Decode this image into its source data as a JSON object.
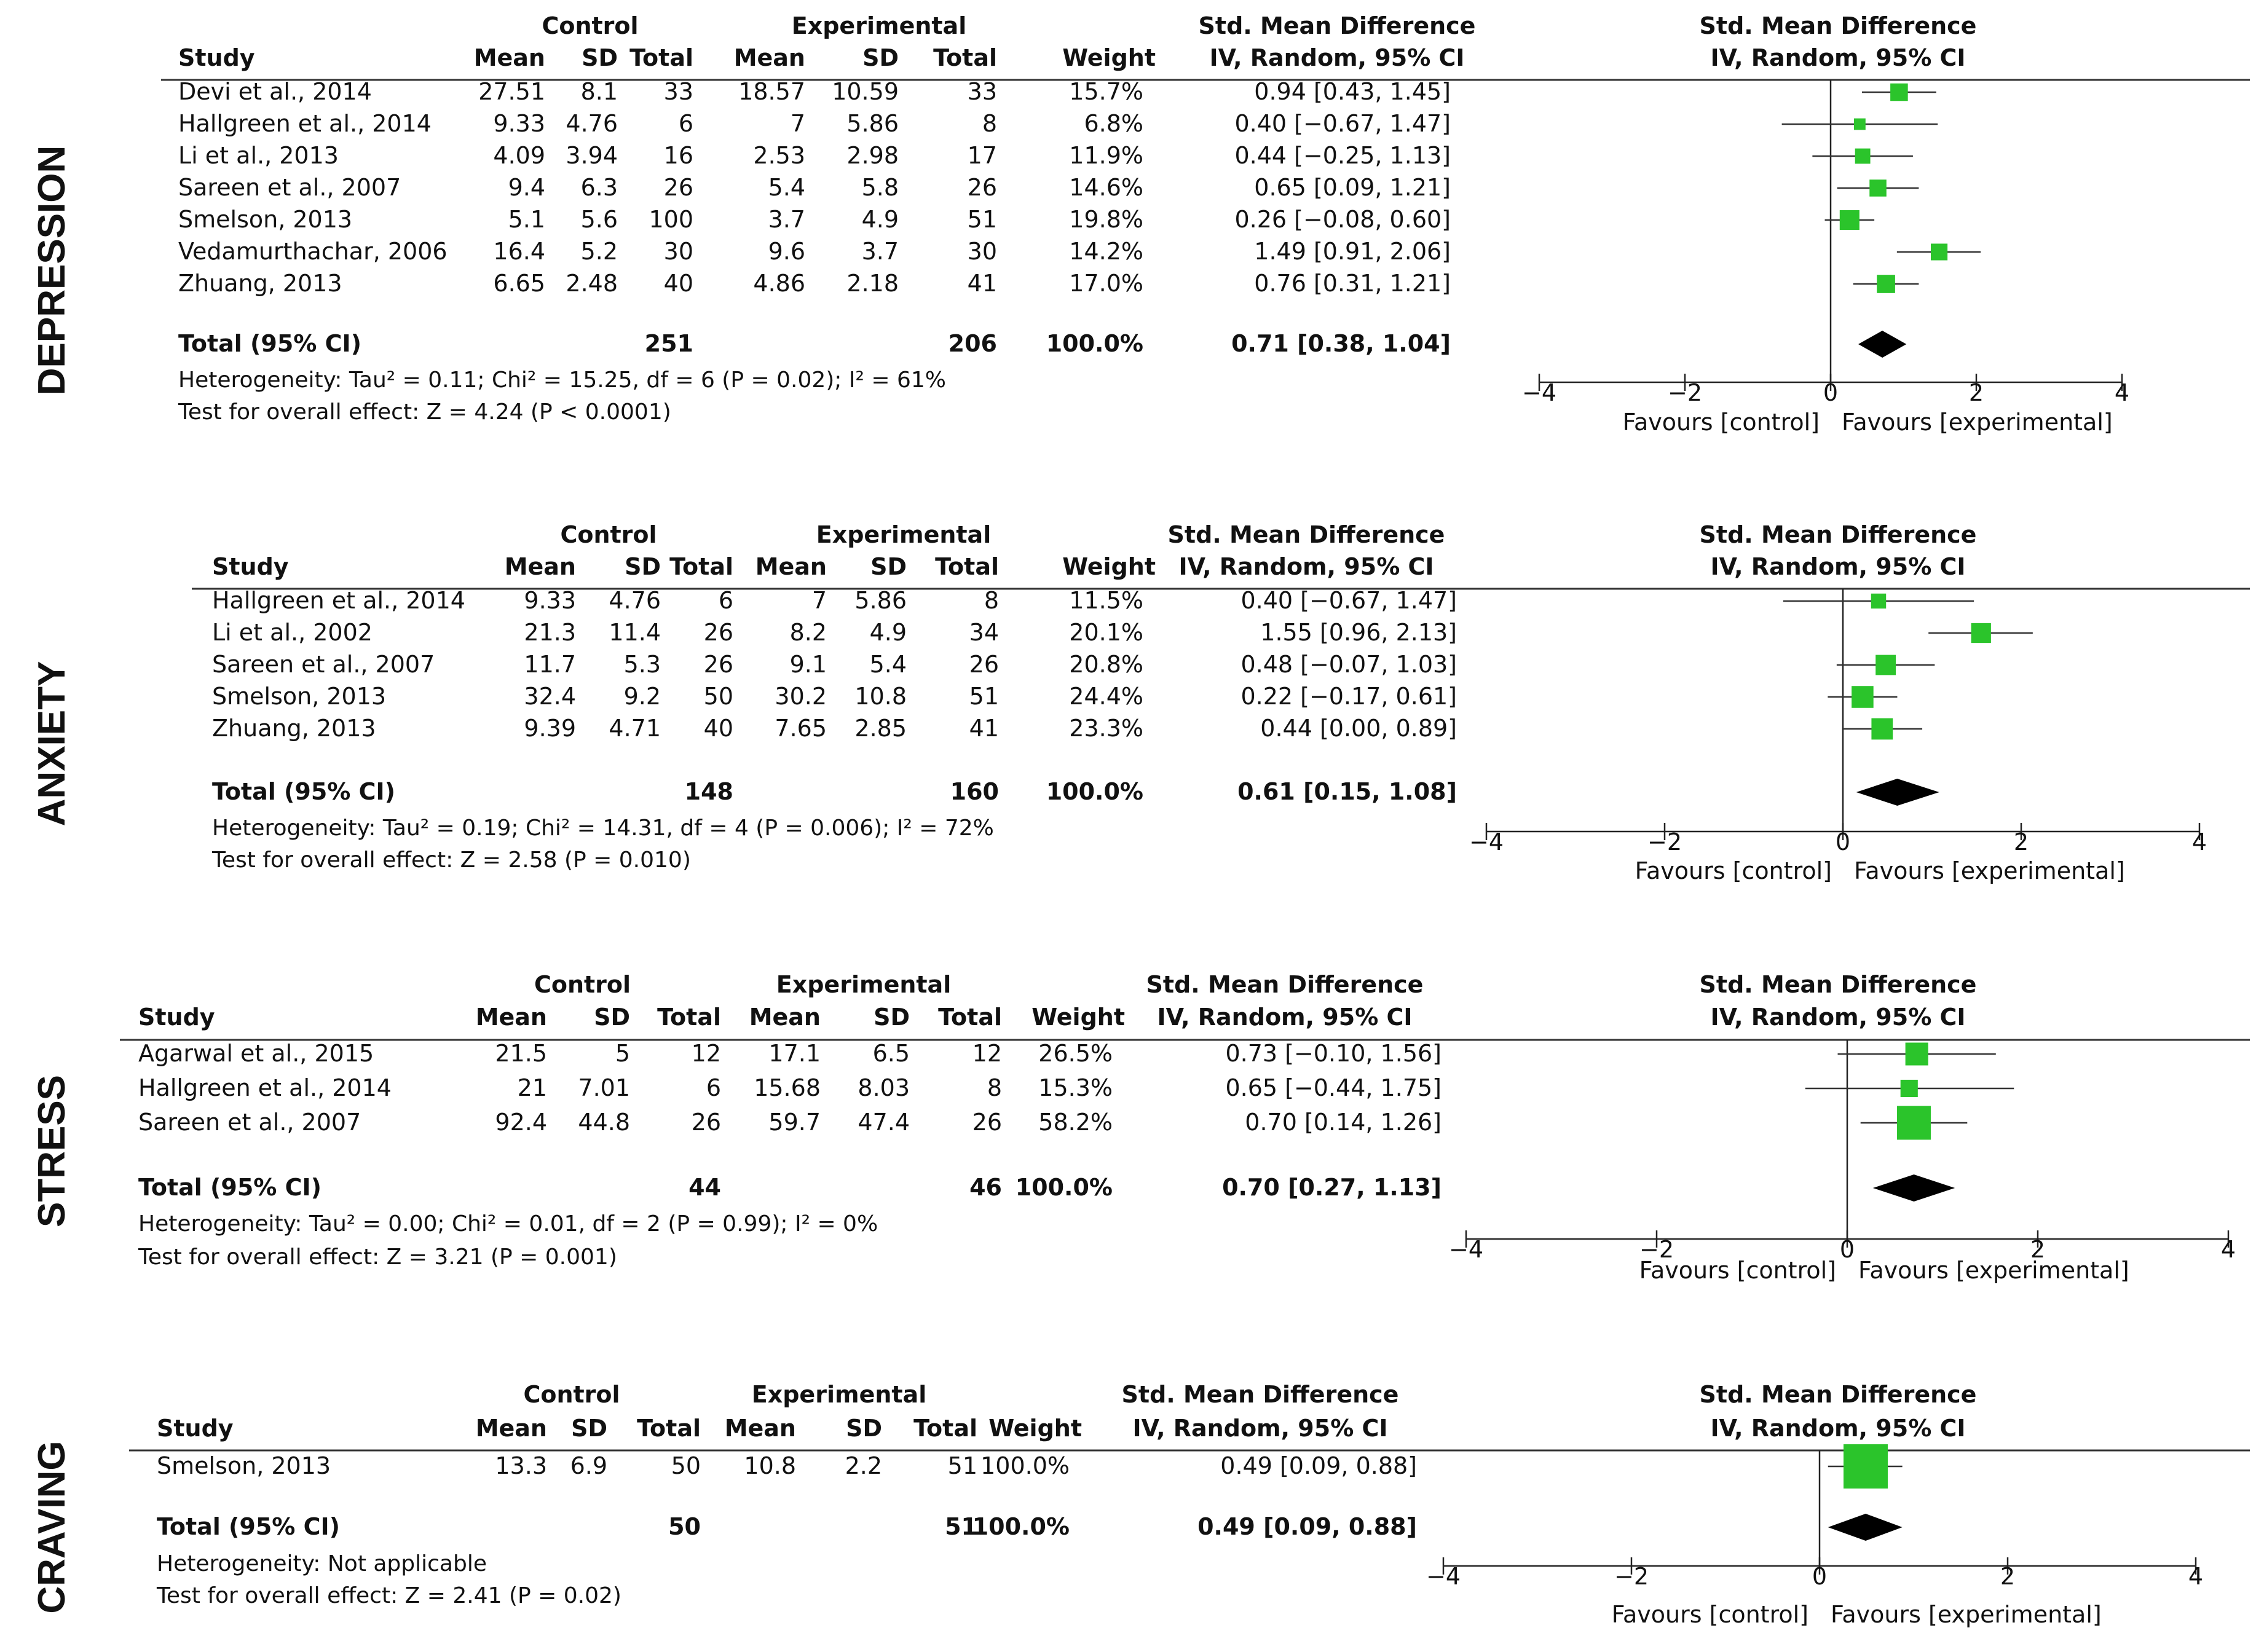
{
  "labels": {
    "control": "Control",
    "experimental": "Experimental",
    "smd": "Std. Mean Difference",
    "study": "Study",
    "mean": "Mean",
    "sd": "SD",
    "total": "Total",
    "weight": "Weight",
    "method": "IV, Random, 95% CI",
    "plot_title": "Std. Mean Difference",
    "plot_method": "IV, Random, 95% CI",
    "favours_control": "Favours [control]",
    "favours_experimental": "Favours [experimental]",
    "total_row": "Total (95% CI)"
  },
  "colors": {
    "marker": "#2bc42b",
    "diamond": "#000000",
    "text": "#111111"
  },
  "chart_data": [
    {
      "type": "forest",
      "section": "DEPRESSION",
      "xlim": [
        -4,
        4
      ],
      "ticks": [
        "−4",
        "−2",
        "0",
        "2",
        "4"
      ],
      "studies": [
        {
          "name": "Devi et al., 2014",
          "c_mean": "27.51",
          "c_sd": "8.1",
          "c_total": "33",
          "e_mean": "18.57",
          "e_sd": "10.59",
          "e_total": "33",
          "weight": "15.7%",
          "ci_text": "0.94 [0.43, 1.45]",
          "est": 0.94,
          "lo": 0.43,
          "hi": 1.45,
          "w": 15.7
        },
        {
          "name": "Hallgreen et al., 2014",
          "c_mean": "9.33",
          "c_sd": "4.76",
          "c_total": "6",
          "e_mean": "7",
          "e_sd": "5.86",
          "e_total": "8",
          "weight": "6.8%",
          "ci_text": "0.40 [−0.67, 1.47]",
          "est": 0.4,
          "lo": -0.67,
          "hi": 1.47,
          "w": 6.8
        },
        {
          "name": "Li et al., 2013",
          "c_mean": "4.09",
          "c_sd": "3.94",
          "c_total": "16",
          "e_mean": "2.53",
          "e_sd": "2.98",
          "e_total": "17",
          "weight": "11.9%",
          "ci_text": "0.44 [−0.25, 1.13]",
          "est": 0.44,
          "lo": -0.25,
          "hi": 1.13,
          "w": 11.9
        },
        {
          "name": "Sareen et al., 2007",
          "c_mean": "9.4",
          "c_sd": "6.3",
          "c_total": "26",
          "e_mean": "5.4",
          "e_sd": "5.8",
          "e_total": "26",
          "weight": "14.6%",
          "ci_text": "0.65 [0.09, 1.21]",
          "est": 0.65,
          "lo": 0.09,
          "hi": 1.21,
          "w": 14.6
        },
        {
          "name": "Smelson, 2013",
          "c_mean": "5.1",
          "c_sd": "5.6",
          "c_total": "100",
          "e_mean": "3.7",
          "e_sd": "4.9",
          "e_total": "51",
          "weight": "19.8%",
          "ci_text": "0.26 [−0.08, 0.60]",
          "est": 0.26,
          "lo": -0.08,
          "hi": 0.6,
          "w": 19.8
        },
        {
          "name": "Vedamurthachar, 2006",
          "c_mean": "16.4",
          "c_sd": "5.2",
          "c_total": "30",
          "e_mean": "9.6",
          "e_sd": "3.7",
          "e_total": "30",
          "weight": "14.2%",
          "ci_text": "1.49 [0.91, 2.06]",
          "est": 1.49,
          "lo": 0.91,
          "hi": 2.06,
          "w": 14.2
        },
        {
          "name": "Zhuang, 2013",
          "c_mean": "6.65",
          "c_sd": "2.48",
          "c_total": "40",
          "e_mean": "4.86",
          "e_sd": "2.18",
          "e_total": "41",
          "weight": "17.0%",
          "ci_text": "0.76 [0.31, 1.21]",
          "est": 0.76,
          "lo": 0.31,
          "hi": 1.21,
          "w": 17.0
        }
      ],
      "total": {
        "c_total": "251",
        "e_total": "206",
        "weight": "100.0%",
        "ci_text": "0.71 [0.38, 1.04]",
        "est": 0.71,
        "lo": 0.38,
        "hi": 1.04
      },
      "heterogeneity": "Heterogeneity: Tau² = 0.11; Chi² = 15.25, df = 6 (P = 0.02); I² = 61%",
      "overall": "Test for overall effect: Z = 4.24 (P < 0.0001)"
    },
    {
      "type": "forest",
      "section": "ANXIETY",
      "xlim": [
        -4,
        4
      ],
      "ticks": [
        "−4",
        "−2",
        "0",
        "2",
        "4"
      ],
      "studies": [
        {
          "name": "Hallgreen et al., 2014",
          "c_mean": "9.33",
          "c_sd": "4.76",
          "c_total": "6",
          "e_mean": "7",
          "e_sd": "5.86",
          "e_total": "8",
          "weight": "11.5%",
          "ci_text": "0.40 [−0.67, 1.47]",
          "est": 0.4,
          "lo": -0.67,
          "hi": 1.47,
          "w": 11.5
        },
        {
          "name": "Li et al., 2002",
          "c_mean": "21.3",
          "c_sd": "11.4",
          "c_total": "26",
          "e_mean": "8.2",
          "e_sd": "4.9",
          "e_total": "34",
          "weight": "20.1%",
          "ci_text": "1.55 [0.96, 2.13]",
          "est": 1.55,
          "lo": 0.96,
          "hi": 2.13,
          "w": 20.1
        },
        {
          "name": "Sareen et al., 2007",
          "c_mean": "11.7",
          "c_sd": "5.3",
          "c_total": "26",
          "e_mean": "9.1",
          "e_sd": "5.4",
          "e_total": "26",
          "weight": "20.8%",
          "ci_text": "0.48 [−0.07, 1.03]",
          "est": 0.48,
          "lo": -0.07,
          "hi": 1.03,
          "w": 20.8
        },
        {
          "name": "Smelson, 2013",
          "c_mean": "32.4",
          "c_sd": "9.2",
          "c_total": "50",
          "e_mean": "30.2",
          "e_sd": "10.8",
          "e_total": "51",
          "weight": "24.4%",
          "ci_text": "0.22 [−0.17, 0.61]",
          "est": 0.22,
          "lo": -0.17,
          "hi": 0.61,
          "w": 24.4
        },
        {
          "name": "Zhuang, 2013",
          "c_mean": "9.39",
          "c_sd": "4.71",
          "c_total": "40",
          "e_mean": "7.65",
          "e_sd": "2.85",
          "e_total": "41",
          "weight": "23.3%",
          "ci_text": "0.44 [0.00, 0.89]",
          "est": 0.44,
          "lo": 0.0,
          "hi": 0.89,
          "w": 23.3
        }
      ],
      "total": {
        "c_total": "148",
        "e_total": "160",
        "weight": "100.0%",
        "ci_text": "0.61 [0.15, 1.08]",
        "est": 0.61,
        "lo": 0.15,
        "hi": 1.08
      },
      "heterogeneity": "Heterogeneity: Tau² = 0.19; Chi² = 14.31, df = 4 (P = 0.006); I² = 72%",
      "overall": "Test for overall effect: Z = 2.58 (P = 0.010)"
    },
    {
      "type": "forest",
      "section": "STRESS",
      "xlim": [
        -4,
        4
      ],
      "ticks": [
        "−4",
        "−2",
        "0",
        "2",
        "4"
      ],
      "studies": [
        {
          "name": "Agarwal et al., 2015",
          "c_mean": "21.5",
          "c_sd": "5",
          "c_total": "12",
          "e_mean": "17.1",
          "e_sd": "6.5",
          "e_total": "12",
          "weight": "26.5%",
          "ci_text": "0.73 [−0.10, 1.56]",
          "est": 0.73,
          "lo": -0.1,
          "hi": 1.56,
          "w": 26.5
        },
        {
          "name": "Hallgreen et al., 2014",
          "c_mean": "21",
          "c_sd": "7.01",
          "c_total": "6",
          "e_mean": "15.68",
          "e_sd": "8.03",
          "e_total": "8",
          "weight": "15.3%",
          "ci_text": "0.65 [−0.44, 1.75]",
          "est": 0.65,
          "lo": -0.44,
          "hi": 1.75,
          "w": 15.3
        },
        {
          "name": "Sareen et al., 2007",
          "c_mean": "92.4",
          "c_sd": "44.8",
          "c_total": "26",
          "e_mean": "59.7",
          "e_sd": "47.4",
          "e_total": "26",
          "weight": "58.2%",
          "ci_text": "0.70 [0.14, 1.26]",
          "est": 0.7,
          "lo": 0.14,
          "hi": 1.26,
          "w": 58.2
        }
      ],
      "total": {
        "c_total": "44",
        "e_total": "46",
        "weight": "100.0%",
        "ci_text": "0.70 [0.27, 1.13]",
        "est": 0.7,
        "lo": 0.27,
        "hi": 1.13
      },
      "heterogeneity": "Heterogeneity: Tau² = 0.00; Chi² = 0.01, df = 2 (P = 0.99); I² = 0%",
      "overall": "Test for overall effect: Z = 3.21 (P = 0.001)"
    },
    {
      "type": "forest",
      "section": "CRAVING",
      "xlim": [
        -4,
        4
      ],
      "ticks": [
        "−4",
        "−2",
        "0",
        "2",
        "4"
      ],
      "studies": [
        {
          "name": "Smelson, 2013",
          "c_mean": "13.3",
          "c_sd": "6.9",
          "c_total": "50",
          "e_mean": "10.8",
          "e_sd": "2.2",
          "e_total": "51",
          "weight": "100.0%",
          "ci_text": "0.49 [0.09, 0.88]",
          "est": 0.49,
          "lo": 0.09,
          "hi": 0.88,
          "w": 100.0
        }
      ],
      "total": {
        "c_total": "50",
        "e_total": "51",
        "weight": "100.0%",
        "ci_text": "0.49 [0.09, 0.88]",
        "est": 0.49,
        "lo": 0.09,
        "hi": 0.88
      },
      "heterogeneity": "Heterogeneity: Not applicable",
      "overall": "Test for overall effect: Z = 2.41 (P = 0.02)"
    }
  ]
}
